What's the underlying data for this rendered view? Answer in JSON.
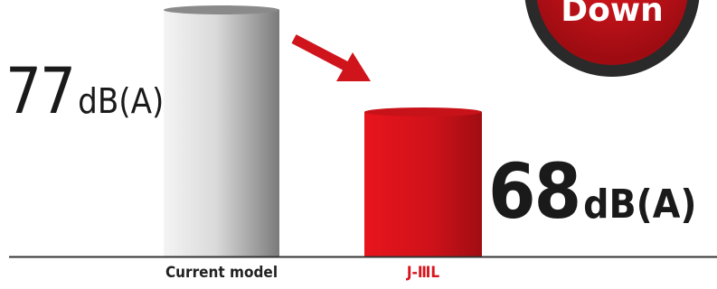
{
  "chart_data": {
    "type": "bar",
    "categories": [
      "Current model",
      "J-ⅢL"
    ],
    "values": [
      77,
      68
    ],
    "unit": "dB(A)",
    "value_labels": [
      {
        "number": "77",
        "unit": "dB(A)"
      },
      {
        "number": "68",
        "unit": "dB(A)"
      }
    ],
    "badge": "Down",
    "colors": {
      "current_bar": "#a8a8a8",
      "jiii_bar": "#d8141c",
      "arrow": "#d0141c",
      "badge": "#c8141c",
      "badge_ring": "#2a2a2a"
    }
  }
}
